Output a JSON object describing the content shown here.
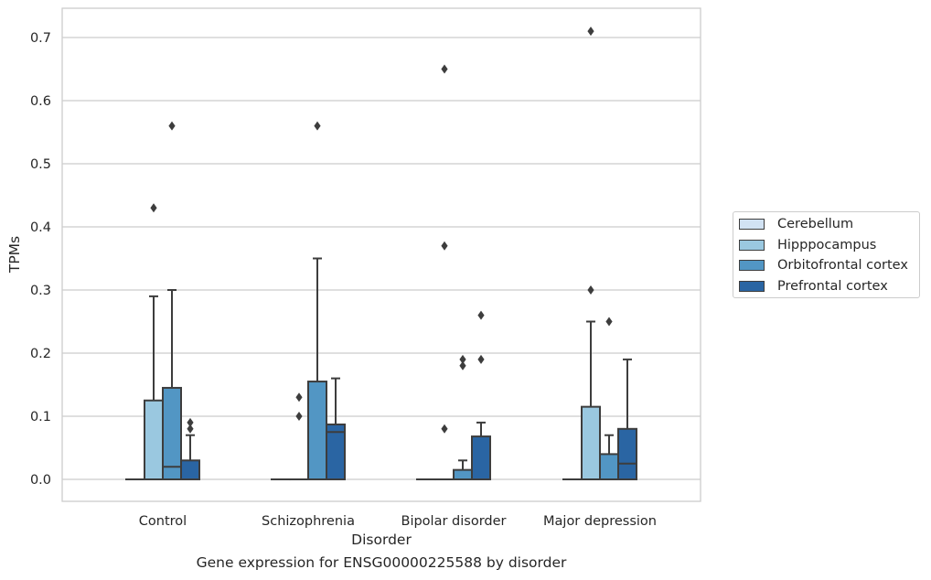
{
  "chart_data": {
    "type": "box",
    "xlabel": "Disorder",
    "ylabel": "TPMs",
    "ylim": [
      -0.035,
      0.75
    ],
    "yticks": [
      0.0,
      0.1,
      0.2,
      0.3,
      0.4,
      0.5,
      0.6,
      0.7
    ],
    "ytick_labels": [
      "0.0",
      "0.1",
      "0.2",
      "0.3",
      "0.4",
      "0.5",
      "0.6",
      "0.7"
    ],
    "categories": [
      "Control",
      "Schizophrenia",
      "Bipolar disorder",
      "Major depression"
    ],
    "grid": "horizontal",
    "legend_position": "right-center",
    "series": [
      {
        "name": "Cerebellum",
        "color": "#d1e2f3",
        "boxes": [
          {
            "q1": 0,
            "median": 0,
            "q3": 0,
            "whisker_low": 0,
            "whisker_high": 0,
            "outliers": []
          },
          {
            "q1": 0,
            "median": 0,
            "q3": 0,
            "whisker_low": 0,
            "whisker_high": 0,
            "outliers": []
          },
          {
            "q1": 0,
            "median": 0,
            "q3": 0,
            "whisker_low": 0,
            "whisker_high": 0,
            "outliers": []
          },
          {
            "q1": 0,
            "median": 0,
            "q3": 0,
            "whisker_low": 0,
            "whisker_high": 0,
            "outliers": []
          }
        ]
      },
      {
        "name": "Hipppocampus",
        "color": "#9ac8e0",
        "boxes": [
          {
            "q1": 0,
            "median": 0,
            "q3": 0.125,
            "whisker_low": 0,
            "whisker_high": 0.29,
            "outliers": [
              0.43
            ]
          },
          {
            "q1": 0,
            "median": 0,
            "q3": 0,
            "whisker_low": 0,
            "whisker_high": 0,
            "outliers": [
              0.1,
              0.13
            ]
          },
          {
            "q1": 0,
            "median": 0,
            "q3": 0,
            "whisker_low": 0,
            "whisker_high": 0,
            "outliers": [
              0.08,
              0.37,
              0.65
            ]
          },
          {
            "q1": 0,
            "median": 0,
            "q3": 0.115,
            "whisker_low": 0,
            "whisker_high": 0.25,
            "outliers": [
              0.3,
              0.71
            ]
          }
        ]
      },
      {
        "name": "Orbitofrontal cortex",
        "color": "#5296c4",
        "boxes": [
          {
            "q1": 0,
            "median": 0.02,
            "q3": 0.145,
            "whisker_low": 0,
            "whisker_high": 0.3,
            "outliers": [
              0.56
            ]
          },
          {
            "q1": 0,
            "median": 0,
            "q3": 0.155,
            "whisker_low": 0,
            "whisker_high": 0.35,
            "outliers": [
              0.56
            ]
          },
          {
            "q1": 0,
            "median": 0,
            "q3": 0.015,
            "whisker_low": 0,
            "whisker_high": 0.03,
            "outliers": [
              0.18,
              0.19
            ]
          },
          {
            "q1": 0,
            "median": 0,
            "q3": 0.04,
            "whisker_low": 0,
            "whisker_high": 0.07,
            "outliers": [
              0.25
            ]
          }
        ]
      },
      {
        "name": "Prefrontal cortex",
        "color": "#2a65a3",
        "boxes": [
          {
            "q1": 0,
            "median": 0,
            "q3": 0.03,
            "whisker_low": 0,
            "whisker_high": 0.07,
            "outliers": [
              0.08,
              0.09
            ]
          },
          {
            "q1": 0,
            "median": 0.075,
            "q3": 0.087,
            "whisker_low": 0,
            "whisker_high": 0.16,
            "outliers": []
          },
          {
            "q1": 0,
            "median": 0,
            "q3": 0.068,
            "whisker_low": 0,
            "whisker_high": 0.09,
            "outliers": [
              0.19,
              0.26
            ]
          },
          {
            "q1": 0,
            "median": 0.025,
            "q3": 0.08,
            "whisker_low": 0,
            "whisker_high": 0.19,
            "outliers": []
          }
        ]
      }
    ]
  },
  "caption": "Gene expression for ENSG00000225588 by disorder"
}
